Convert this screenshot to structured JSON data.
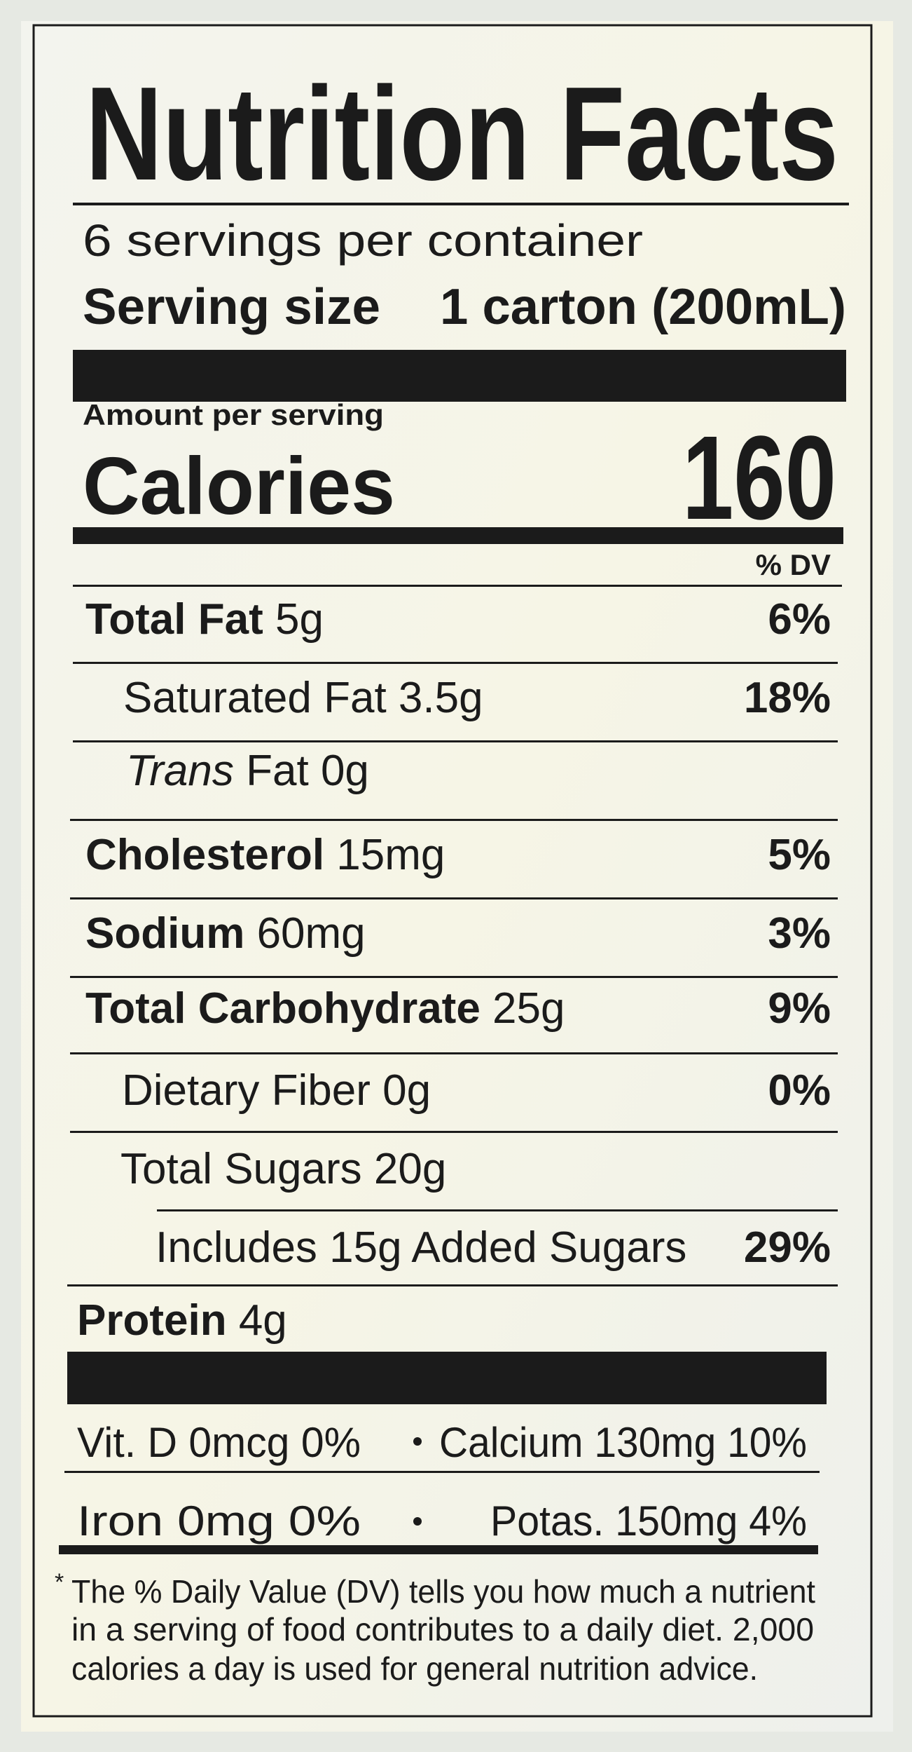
{
  "title": "Nutrition Facts",
  "servings": "6 servings per container",
  "serving_size": {
    "label": "Serving size",
    "value": "1 carton (200mL)"
  },
  "amount_per_serving": "Amount per serving",
  "calories": {
    "label": "Calories",
    "value": 160
  },
  "dv_header": "% DV",
  "nutrients": [
    {
      "name": "Total Fat",
      "amount": "5g",
      "dv": "6%"
    },
    {
      "name": "Saturated Fat",
      "amount": "3.5g",
      "dv": "18%"
    },
    {
      "prefix": "Trans",
      "name": "Fat",
      "amount": "0g"
    },
    {
      "name": "Cholesterol",
      "amount": "15mg",
      "dv": "5%"
    },
    {
      "name": "Sodium",
      "amount": "60mg",
      "dv": "3%"
    },
    {
      "name": "Total Carbohydrate",
      "amount": "25g",
      "dv": "9%"
    },
    {
      "name": "Dietary Fiber",
      "amount": "0g",
      "dv": "0%"
    },
    {
      "name": "Total Sugars",
      "amount": "20g"
    },
    {
      "name": "Includes 15g Added Sugars",
      "dv": "29%"
    },
    {
      "name": "Protein",
      "amount": "4g"
    }
  ],
  "minerals": [
    [
      "Vit. D 0mcg 0%",
      "Calcium 130mg 10%"
    ],
    [
      "Iron 0mg 0%",
      "Potas. 150mg 4%"
    ]
  ],
  "footnote": {
    "asterisk": "*",
    "lines": [
      "The % Daily Value (DV) tells you how much a nutrient",
      "in a serving of food contributes to a daily diet. 2,000",
      "calories a day is used for general nutrition advice."
    ]
  }
}
